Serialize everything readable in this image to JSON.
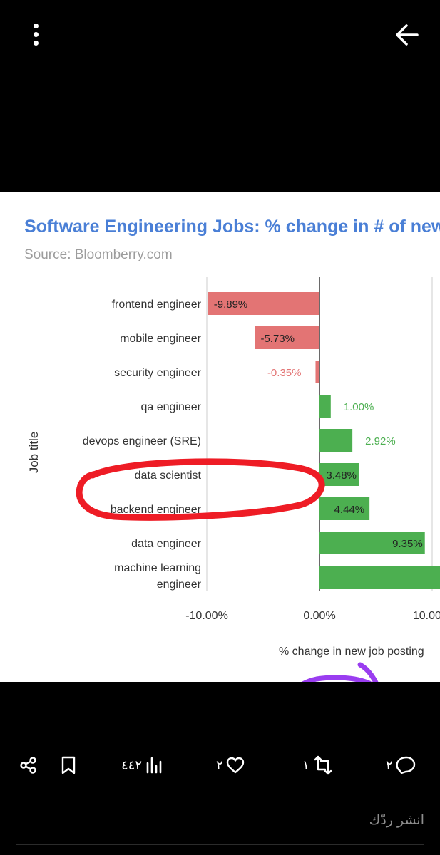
{
  "post": {
    "chart_title": "Software Engineering Jobs: % change in # of new",
    "chart_source": "Source: Bloomberry.com"
  },
  "colors": {
    "negative": "#e37474",
    "positive": "#4caf50",
    "red_annotation": "#ee1c25",
    "purple_annotation": "#9a3df0",
    "title": "#4a7fd6"
  },
  "icons": {
    "top_left": "more-vert-icon",
    "top_right": "arrow-back-icon",
    "share": "share-icon",
    "bookmark": "bookmark-icon",
    "views": "views-icon",
    "like": "heart-icon",
    "repost": "repost-icon",
    "reply": "comment-icon"
  },
  "actions": {
    "views": "٤٤٢",
    "likes": "٢",
    "reposts": "١",
    "replies": "٢"
  },
  "reply_placeholder": "انشر ردّك",
  "chart_data": {
    "type": "bar",
    "orientation": "horizontal",
    "title": "Software Engineering Jobs: % change in # of new",
    "subtitle": "Source: Bloomberry.com",
    "ylabel": "Job title",
    "xlabel": "% change in new job posting",
    "categories": [
      "frontend engineer",
      "mobile engineer",
      "security engineer",
      "qa engineer",
      "devops engineer (SRE)",
      "data scientist",
      "backend engineer",
      "data engineer",
      "machine learning engineer"
    ],
    "values": [
      -9.89,
      -5.73,
      -0.35,
      1.0,
      2.92,
      3.48,
      4.44,
      9.35,
      13
    ],
    "value_labels": [
      "-9.89%",
      "-5.73%",
      "-0.35%",
      "1.00%",
      "2.92%",
      "3.48%",
      "4.44%",
      "9.35%",
      ""
    ],
    "x_ticks": [
      -10,
      0,
      10
    ],
    "x_tick_labels": [
      "-10.00%",
      "0.00%",
      "10.00%"
    ],
    "xlim": [
      -10,
      10
    ],
    "grid": true,
    "annotations": [
      {
        "type": "hand-drawn circle",
        "color": "red",
        "target": "frontend engineer"
      },
      {
        "type": "hand-drawn circle",
        "color": "purple",
        "target": "backend engineer"
      }
    ]
  }
}
